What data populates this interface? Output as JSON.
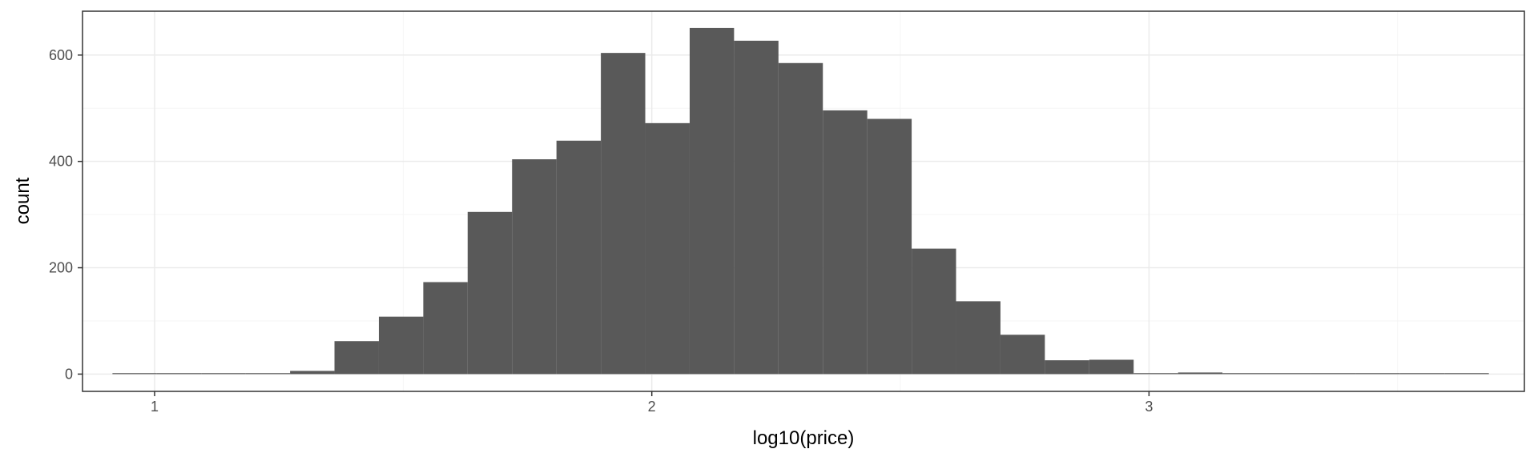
{
  "chart_data": {
    "type": "bar",
    "title": "",
    "xlabel": "log10(price)",
    "ylabel": "count",
    "xlim": [
      0.855,
      3.755
    ],
    "ylim": [
      -32.5,
      682.5
    ],
    "x_ticks": [
      1,
      2,
      3
    ],
    "y_ticks": [
      0,
      200,
      400,
      600
    ],
    "x_minor_ticks": [
      1.5,
      2.5,
      3.5
    ],
    "y_minor_ticks": [
      100,
      300,
      500
    ],
    "grid": true,
    "bin_width": 0.0893,
    "bins": [
      {
        "x": 0.9599,
        "count": 1
      },
      {
        "x": 1.0492,
        "count": 0
      },
      {
        "x": 1.1385,
        "count": 1
      },
      {
        "x": 1.2278,
        "count": 1
      },
      {
        "x": 1.3171,
        "count": 6
      },
      {
        "x": 1.4064,
        "count": 62
      },
      {
        "x": 1.4957,
        "count": 108
      },
      {
        "x": 1.585,
        "count": 173
      },
      {
        "x": 1.6743,
        "count": 305
      },
      {
        "x": 1.7636,
        "count": 404
      },
      {
        "x": 1.8529,
        "count": 439
      },
      {
        "x": 1.9422,
        "count": 604
      },
      {
        "x": 2.0315,
        "count": 472
      },
      {
        "x": 2.1208,
        "count": 651
      },
      {
        "x": 2.2101,
        "count": 627
      },
      {
        "x": 2.2994,
        "count": 585
      },
      {
        "x": 2.3887,
        "count": 496
      },
      {
        "x": 2.478,
        "count": 480
      },
      {
        "x": 2.5673,
        "count": 236
      },
      {
        "x": 2.6566,
        "count": 137
      },
      {
        "x": 2.7459,
        "count": 74
      },
      {
        "x": 2.8352,
        "count": 26
      },
      {
        "x": 2.9245,
        "count": 27
      },
      {
        "x": 3.0138,
        "count": 1
      },
      {
        "x": 3.1031,
        "count": 3
      },
      {
        "x": 3.1924,
        "count": 0
      },
      {
        "x": 3.2817,
        "count": 0
      },
      {
        "x": 3.371,
        "count": 1
      },
      {
        "x": 3.4603,
        "count": 0
      },
      {
        "x": 3.5496,
        "count": 1
      },
      {
        "x": 3.6389,
        "count": 1
      }
    ],
    "colors": {
      "bar": "#595959",
      "grid_major": "#ebebeb",
      "grid_minor": "#f5f5f5",
      "panel_border": "#333333",
      "tick": "#333333"
    }
  }
}
